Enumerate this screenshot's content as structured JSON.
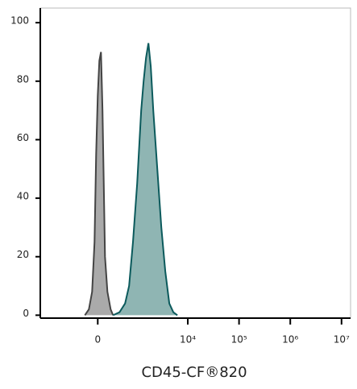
{
  "chart_data": {
    "type": "histogram",
    "x_label": "CD45-CF®820",
    "xscale": "asinh",
    "xlim": [
      -2300,
      15000000
    ],
    "xticks": [
      0,
      {
        "value": 10000,
        "label": "10⁴"
      },
      {
        "value": 100000,
        "label": "10⁵"
      },
      {
        "value": 1000000,
        "label": "10⁶"
      },
      {
        "value": 10000000,
        "label": "10⁷"
      }
    ],
    "ylim": [
      -1,
      105
    ],
    "yticks": [
      0,
      20,
      40,
      60,
      80,
      100
    ],
    "series": [
      {
        "color": "#444444",
        "fill": "#aaaaaa",
        "x": [
          -214,
          -143,
          -90,
          -51,
          -25,
          0,
          25,
          51,
          76,
          116,
          157,
          214,
          260
        ],
        "values": [
          0,
          2,
          8,
          25,
          55,
          75,
          87,
          90,
          70,
          20,
          8,
          2,
          0
        ]
      },
      {
        "color": "#0b5a5c",
        "fill": "#8fb5b3",
        "x": [
          260,
          399,
          547,
          672,
          815,
          998,
          1208,
          1352,
          1509,
          1686,
          1883,
          2106,
          2534,
          3033,
          3635,
          4355,
          5217,
          6250
        ],
        "values": [
          0,
          1,
          4,
          10,
          25,
          45,
          70,
          80,
          88,
          93,
          85,
          70,
          50,
          30,
          15,
          4,
          1,
          0
        ]
      }
    ]
  }
}
